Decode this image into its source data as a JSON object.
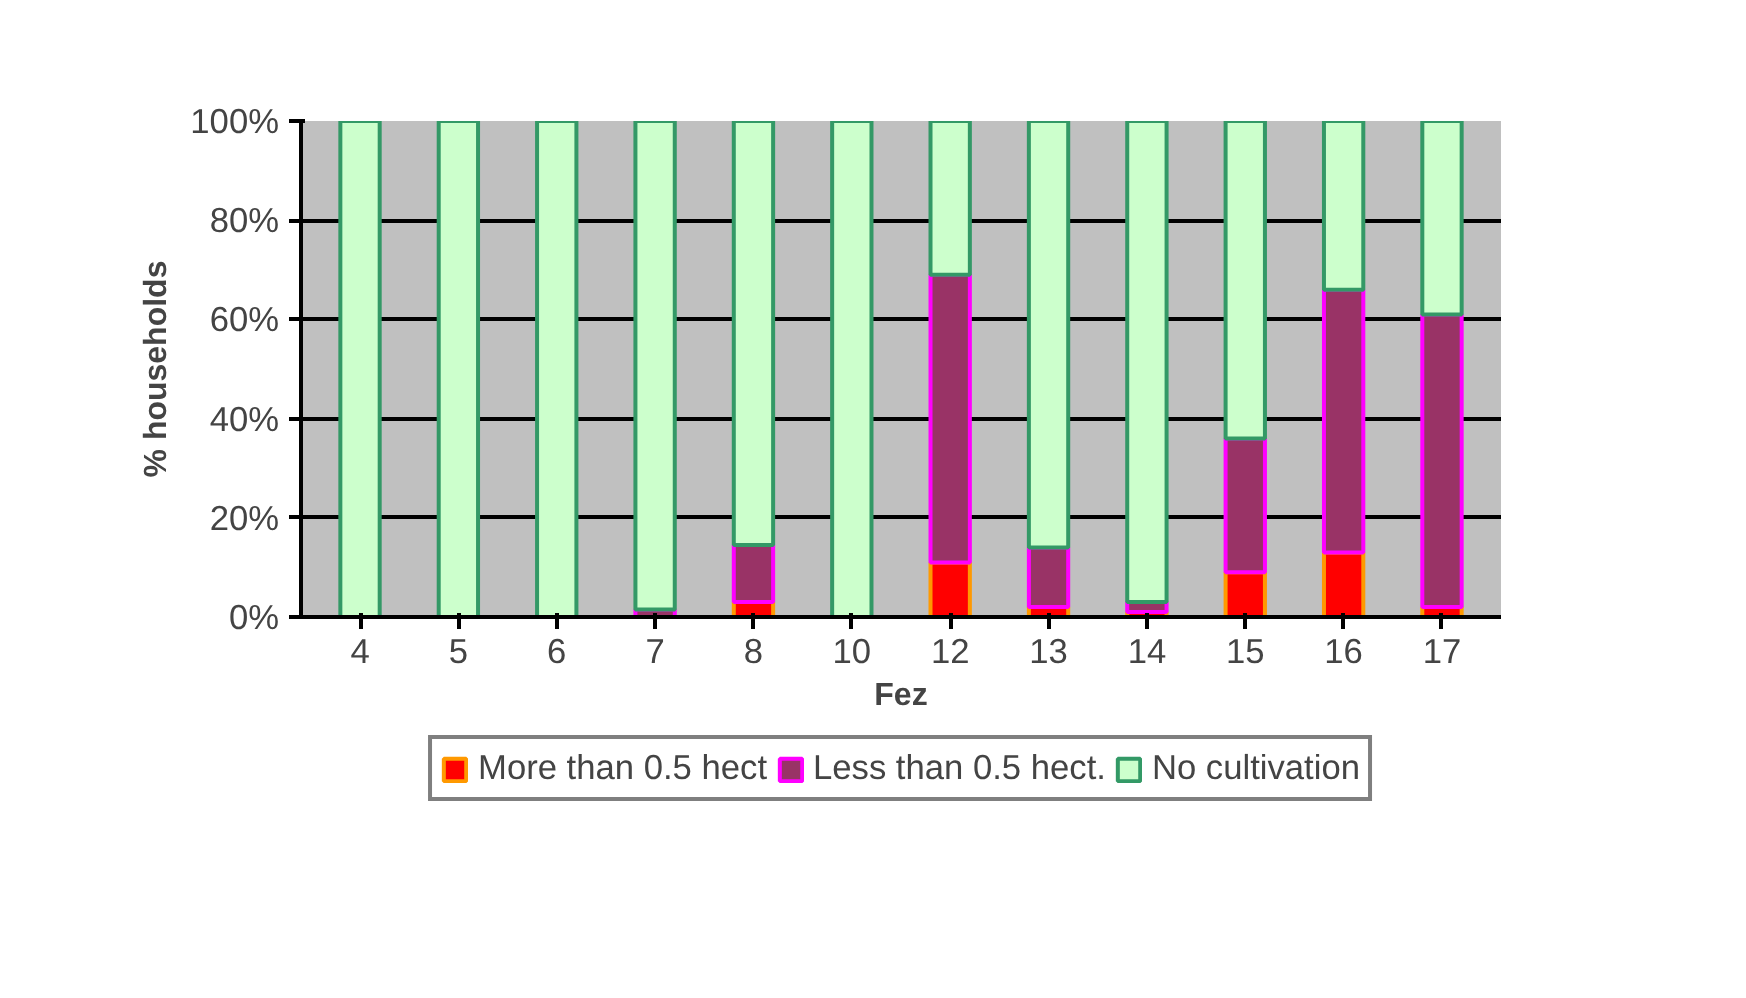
{
  "chart_data": {
    "type": "bar",
    "stacked": true,
    "xlabel": "Fez",
    "ylabel": "% households",
    "categories": [
      "4",
      "5",
      "6",
      "7",
      "8",
      "10",
      "12",
      "13",
      "14",
      "15",
      "16",
      "17"
    ],
    "series": [
      {
        "name": "More than 0.5 hect",
        "color": "#ff0000",
        "values": [
          0,
          0,
          0,
          0,
          3,
          0,
          11,
          2,
          1,
          9,
          13,
          2
        ]
      },
      {
        "name": "Less than 0.5 hect.",
        "color": "#993366",
        "values": [
          0,
          0,
          0,
          1.5,
          11.5,
          0,
          58,
          12,
          2,
          27,
          53,
          59
        ]
      },
      {
        "name": "No cultivation",
        "color": "#ccffcc",
        "values": [
          100,
          100,
          100,
          98.5,
          85.5,
          100,
          31,
          86,
          97,
          64,
          34,
          39
        ]
      }
    ],
    "ylim": [
      0,
      100
    ],
    "yticks": [
      {
        "value": 0,
        "label": "0%"
      },
      {
        "value": 20,
        "label": "20%"
      },
      {
        "value": 40,
        "label": "40%"
      },
      {
        "value": 60,
        "label": "60%"
      },
      {
        "value": 80,
        "label": "80%"
      },
      {
        "value": 100,
        "label": "100%"
      }
    ],
    "grid": "y",
    "legend": "bottom"
  }
}
